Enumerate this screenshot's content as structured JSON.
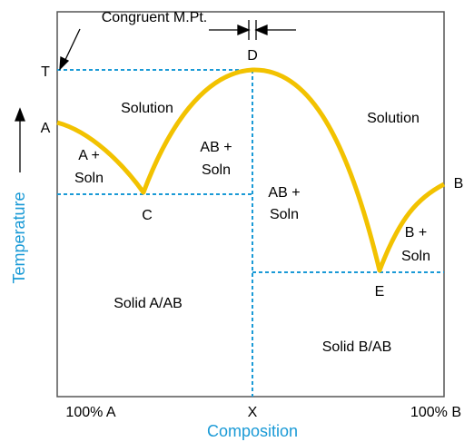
{
  "diagram": {
    "annotation": "Congruent M.Pt.",
    "axis_labels": {
      "y": "Temperature",
      "x": "Composition"
    },
    "x_ticks": [
      "100% A",
      "X",
      "100% B"
    ],
    "points": {
      "T": "T",
      "A": "A",
      "B": "B",
      "C": "C",
      "D": "D",
      "E": "E"
    },
    "regions": {
      "solution_left": "Solution",
      "solution_right": "Solution",
      "a_soln": [
        "A +",
        "Soln"
      ],
      "ab_soln_left": [
        "AB +",
        "Soln"
      ],
      "ab_soln_right": [
        "AB +",
        "Soln"
      ],
      "b_soln": [
        "B +",
        "Soln"
      ],
      "solid_a_ab": "Solid A/AB",
      "solid_b_ab": "Solid B/AB"
    }
  }
}
